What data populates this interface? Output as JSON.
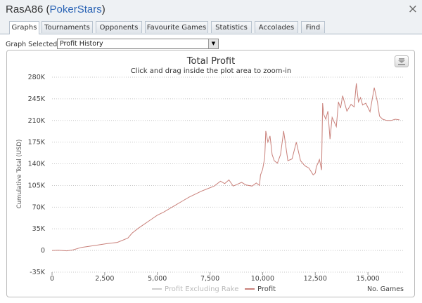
{
  "window": {
    "title_user": "RasA86",
    "title_site": "PokerStars",
    "close_glyph": "×"
  },
  "tabs": [
    {
      "label": "Graphs",
      "active": true
    },
    {
      "label": "Tournaments",
      "active": false
    },
    {
      "label": "Opponents",
      "active": false
    },
    {
      "label": "Favourite Games",
      "active": false
    },
    {
      "label": "Statistics",
      "active": false
    },
    {
      "label": "Accolades",
      "active": false
    },
    {
      "label": "Find",
      "active": false
    }
  ],
  "graph_selector": {
    "label": "Graph Selected:",
    "value": "Profit History"
  },
  "icons": {
    "export": "download-icon",
    "dropdown": "chevron-down-icon"
  },
  "colors": {
    "profit_line": "#c9807a",
    "excl_rake_line": "#cccccc",
    "site_link": "#2b64b5"
  },
  "chart_data": {
    "type": "line",
    "title": "Total Profit",
    "subtitle": "Click and drag inside the plot area to zoom-in",
    "xlabel": "No. Games",
    "ylabel": "Cumulative Total (USD)",
    "xlim": [
      0,
      16700
    ],
    "ylim": [
      -35000,
      280000
    ],
    "x_ticks": [
      0,
      2500,
      5000,
      7500,
      10000,
      12500,
      15000
    ],
    "x_tick_labels": [
      "0",
      "2,500",
      "5,000",
      "7,500",
      "10,000",
      "12,500",
      "15,000"
    ],
    "y_ticks": [
      -35000,
      0,
      35000,
      70000,
      105000,
      140000,
      175000,
      210000,
      245000,
      280000
    ],
    "y_tick_labels": [
      "-35K",
      "0",
      "35K",
      "70K",
      "105K",
      "140K",
      "175K",
      "210K",
      "245K",
      "280K"
    ],
    "grid": "horizontal dotted",
    "legend": "bottom-center",
    "series": [
      {
        "name": "Profit Excluding Rake",
        "visible": false,
        "x": [],
        "y": []
      },
      {
        "name": "Profit",
        "visible": true,
        "x": [
          0,
          300,
          700,
          1000,
          1400,
          2000,
          2600,
          3100,
          3600,
          3800,
          4100,
          4400,
          4700,
          5000,
          5300,
          5600,
          5900,
          6200,
          6500,
          6800,
          7100,
          7400,
          7700,
          8000,
          8200,
          8400,
          8600,
          8800,
          9000,
          9200,
          9500,
          9700,
          9850,
          9900,
          10000,
          10100,
          10150,
          10250,
          10350,
          10450,
          10550,
          10700,
          10850,
          11000,
          11200,
          11400,
          11600,
          11800,
          12000,
          12200,
          12400,
          12500,
          12550,
          12700,
          12800,
          12850,
          12900,
          13000,
          13100,
          13200,
          13300,
          13500,
          13600,
          13700,
          13800,
          14000,
          14200,
          14350,
          14450,
          14550,
          14650,
          14750,
          14900,
          15100,
          15300,
          15450,
          15550,
          15700,
          15900,
          16100,
          16300,
          16500
        ],
        "y": [
          0,
          500,
          -500,
          1000,
          5000,
          8000,
          11000,
          13000,
          20000,
          28000,
          36000,
          43000,
          50000,
          57000,
          62000,
          68000,
          74000,
          80000,
          86000,
          91000,
          96000,
          100000,
          104000,
          112000,
          108000,
          114000,
          104000,
          107000,
          110000,
          106000,
          104000,
          109000,
          105000,
          122000,
          131000,
          150000,
          193000,
          175000,
          185000,
          155000,
          145000,
          141000,
          155000,
          193000,
          145000,
          148000,
          175000,
          145000,
          137000,
          133000,
          122000,
          125000,
          135000,
          147000,
          130000,
          238000,
          220000,
          212000,
          225000,
          180000,
          215000,
          200000,
          240000,
          230000,
          250000,
          225000,
          236000,
          232000,
          270000,
          240000,
          247000,
          235000,
          238000,
          224000,
          263000,
          240000,
          217000,
          212000,
          210000,
          210000,
          212000,
          211000
        ]
      }
    ]
  }
}
